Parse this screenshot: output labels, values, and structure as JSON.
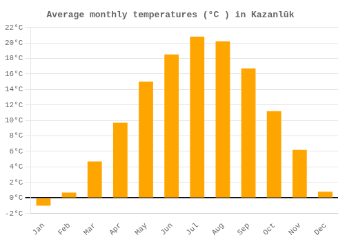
{
  "chart_data": {
    "type": "bar",
    "title": "Average monthly temperatures (°C ) in Kazanlŭk",
    "categories": [
      "Jan",
      "Feb",
      "Mar",
      "Apr",
      "May",
      "Jun",
      "Jul",
      "Aug",
      "Sep",
      "Oct",
      "Nov",
      "Dec"
    ],
    "values": [
      -1.0,
      0.7,
      4.7,
      9.7,
      15.0,
      18.5,
      20.8,
      20.2,
      16.7,
      11.2,
      6.2,
      0.8
    ],
    "color": "#FFA500",
    "ylim": [
      -2,
      22
    ],
    "yticks": [
      {
        "value": -2,
        "label": "-2°C"
      },
      {
        "value": 0,
        "label": "0°C"
      },
      {
        "value": 2,
        "label": "2°C"
      },
      {
        "value": 4,
        "label": "4°C"
      },
      {
        "value": 6,
        "label": "6°C"
      },
      {
        "value": 8,
        "label": "8°C"
      },
      {
        "value": 10,
        "label": "10°C"
      },
      {
        "value": 12,
        "label": "12°C"
      },
      {
        "value": 14,
        "label": "14°C"
      },
      {
        "value": 16,
        "label": "16°C"
      },
      {
        "value": 18,
        "label": "18°C"
      },
      {
        "value": 20,
        "label": "20°C"
      },
      {
        "value": 22,
        "label": "22°C"
      }
    ],
    "grid": true
  }
}
